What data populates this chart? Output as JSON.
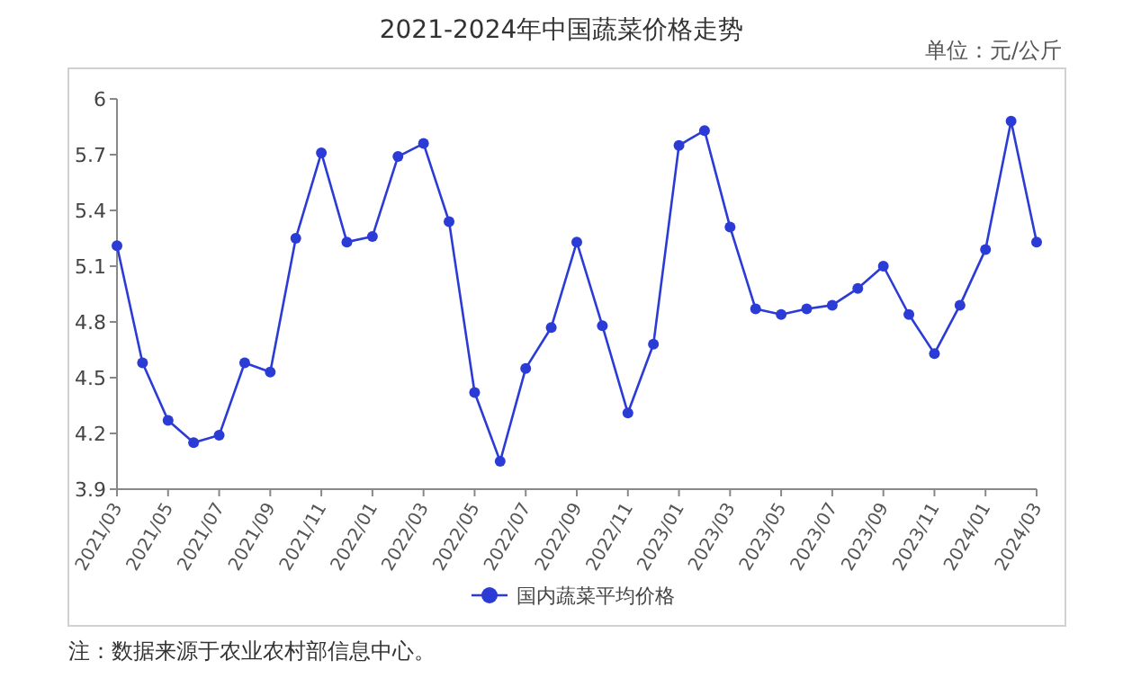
{
  "chart_data": {
    "type": "line",
    "title": "2021-2024年中国蔬菜价格走势",
    "categories": [
      "2021/03",
      null,
      "2021/05",
      null,
      "2021/07",
      null,
      "2021/09",
      null,
      "2021/11",
      null,
      "2022/01",
      null,
      "2022/03",
      null,
      "2022/05",
      null,
      "2022/07",
      null,
      "2022/09",
      null,
      "2022/11",
      null,
      "2023/01",
      null,
      "2023/03",
      null,
      "2023/05",
      null,
      "2023/07",
      null,
      "2023/09",
      null,
      "2023/11",
      null,
      "2024/01",
      null,
      "2024/03"
    ],
    "series": [
      {
        "name": "国内蔬菜平均价格",
        "color": "#2b3bd6",
        "values": [
          5.21,
          4.58,
          4.27,
          4.15,
          4.19,
          4.58,
          4.53,
          5.25,
          5.71,
          5.23,
          5.26,
          5.69,
          5.76,
          5.34,
          4.42,
          4.05,
          4.55,
          4.77,
          5.23,
          4.78,
          4.31,
          4.68,
          5.75,
          5.83,
          5.31,
          4.87,
          4.84,
          4.87,
          4.89,
          4.98,
          5.1,
          4.84,
          4.63,
          4.89,
          5.19,
          5.88,
          5.23
        ]
      }
    ],
    "ylim": [
      3.9,
      6
    ],
    "yticks": [
      3.9,
      4.2,
      4.5,
      4.8,
      5.1,
      5.4,
      5.7,
      6
    ],
    "marker": "circle",
    "line_style": "solid",
    "legend": "bottom",
    "grid": false,
    "annotations": [
      "单位：元/公斤",
      "注：数据来源于农业农村部信息中心。"
    ]
  }
}
